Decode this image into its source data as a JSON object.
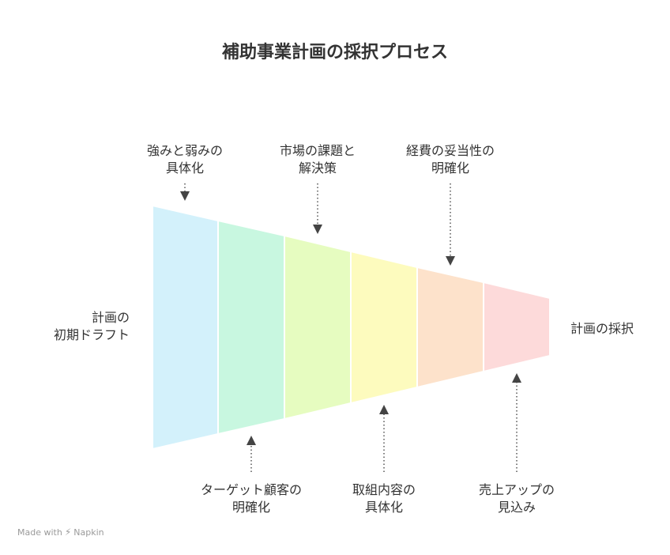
{
  "title": "補助事業計画の採択プロセス",
  "left_label": [
    "計画の",
    "初期ドラフト"
  ],
  "right_label": "計画の採択",
  "top_labels": [
    {
      "line1": "強みと弱みの",
      "line2": "具体化"
    },
    {
      "line1": "市場の課題と",
      "line2": "解決策"
    },
    {
      "line1": "経費の妥当性の",
      "line2": "明確化"
    }
  ],
  "bottom_labels": [
    {
      "line1": "ターゲット顧客の",
      "line2": "明確化"
    },
    {
      "line1": "取組内容の",
      "line2": "具体化"
    },
    {
      "line1": "売上アップの",
      "line2": "見込み"
    }
  ],
  "segment_colors": [
    "#d3f1fb",
    "#c8f7e0",
    "#e6fcc0",
    "#fdfbbe",
    "#fde2cb",
    "#fddada"
  ],
  "footer": {
    "prefix": "Made with",
    "brand": "Napkin",
    "icon": "napkin-logo-icon"
  }
}
